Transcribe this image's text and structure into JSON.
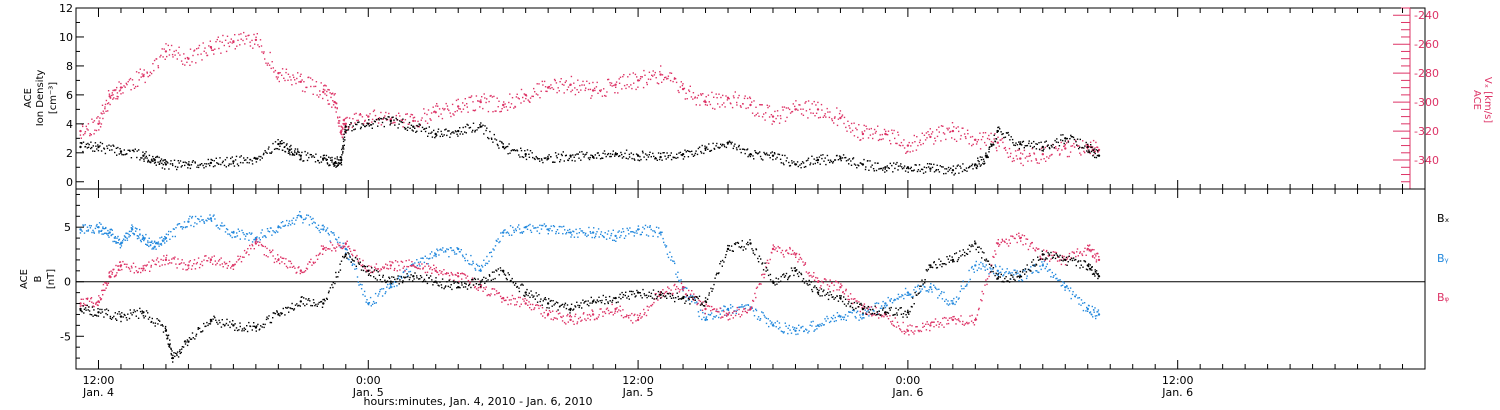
{
  "chart_data": [
    {
      "type": "scatter",
      "title": "",
      "xlabel": "hours:minutes, Jan.  4, 2010 - Jan.  6, 2010",
      "ylabel": [
        "ACE",
        "Ion Density",
        "[cm⁻³]"
      ],
      "ylabel_right": [
        "ACE",
        "Vₓ [km/s]"
      ],
      "xlim": [
        -1,
        59
      ],
      "ylim": [
        -0.5,
        12
      ],
      "ylim_right": [
        -360,
        -235
      ],
      "yticks": [
        0,
        2,
        4,
        6,
        8,
        10,
        12
      ],
      "yticks_right": [
        -340,
        -320,
        -300,
        -280,
        -260,
        -240
      ],
      "x_ticks": [
        {
          "t": 0,
          "label": "12:00",
          "sublabel": "Jan. 4"
        },
        {
          "t": 12,
          "label": "0:00",
          "sublabel": "Jan. 5"
        },
        {
          "t": 24,
          "label": "12:00",
          "sublabel": "Jan. 5"
        },
        {
          "t": 36,
          "label": "0:00",
          "sublabel": "Jan. 6"
        },
        {
          "t": 48,
          "label": "12:00",
          "sublabel": "Jan. 6"
        }
      ],
      "series": [
        {
          "name": "",
          "axis": "left",
          "color": "#000000",
          "x_hours_since_jan4_12": [
            -0.8,
            0,
            1,
            2,
            2.5,
            3,
            4,
            5,
            6,
            7,
            8,
            8.5,
            9,
            10,
            10.5,
            10.8,
            11,
            12,
            13,
            14,
            15,
            16,
            17,
            18,
            19,
            20,
            21,
            22,
            23,
            24,
            25,
            26,
            27,
            28,
            29,
            30,
            31,
            32,
            33,
            34,
            35,
            36,
            37,
            38,
            39,
            39.5,
            40,
            41,
            42,
            43,
            44,
            44.5
          ],
          "values": [
            2.4,
            2.4,
            2.1,
            1.8,
            1.5,
            1.2,
            1.2,
            1.3,
            1.4,
            1.6,
            2.6,
            2.2,
            1.8,
            1.6,
            1.3,
            1.5,
            3.8,
            4.0,
            4.2,
            3.8,
            3.3,
            3.5,
            3.8,
            2.4,
            1.9,
            1.6,
            1.8,
            1.7,
            1.9,
            1.8,
            1.7,
            1.9,
            2.3,
            2.7,
            1.9,
            1.8,
            1.2,
            1.5,
            1.6,
            1.2,
            1.0,
            1.0,
            0.9,
            0.8,
            1.2,
            1.7,
            3.5,
            2.6,
            2.4,
            3.0,
            2.4,
            1.8
          ]
        },
        {
          "name": "",
          "axis": "right",
          "color": "#dd3366",
          "x_hours_since_jan4_12": [
            -0.8,
            0,
            0.5,
            1,
            2,
            3,
            4,
            5,
            6,
            7,
            8,
            9,
            10,
            10.5,
            10.8,
            11,
            12,
            13,
            14,
            15,
            16,
            17,
            18,
            19,
            20,
            21,
            22,
            23,
            24,
            25,
            26,
            27,
            28,
            29,
            30,
            31,
            32,
            33,
            34,
            35,
            36,
            37,
            38,
            39,
            40,
            41,
            42,
            43,
            44,
            44.5
          ],
          "values": [
            -320,
            -315,
            -296,
            -290,
            -282,
            -265,
            -270,
            -262,
            -258,
            -257,
            -280,
            -286,
            -293,
            -300,
            -320,
            -315,
            -310,
            -312,
            -313,
            -307,
            -303,
            -300,
            -302,
            -295,
            -290,
            -288,
            -292,
            -288,
            -285,
            -281,
            -291,
            -300,
            -297,
            -302,
            -310,
            -305,
            -305,
            -311,
            -322,
            -322,
            -330,
            -324,
            -320,
            -326,
            -328,
            -339,
            -336,
            -332,
            -330,
            -333
          ]
        }
      ]
    },
    {
      "type": "scatter",
      "title": "",
      "xlabel": "hours:minutes, Jan.  4, 2010 - Jan.  6, 2010",
      "ylabel": [
        "ACE",
        "B",
        "[nT]"
      ],
      "xlim": [
        -1,
        59
      ],
      "ylim": [
        -8,
        8.5
      ],
      "yticks": [
        -5,
        0,
        5
      ],
      "zero_line": true,
      "legend_placement": "right",
      "series": [
        {
          "name": "Bₓ",
          "color": "#000000",
          "x_hours_since_jan4_12": [
            -0.8,
            0,
            1,
            2,
            3,
            3.3,
            4,
            5,
            6,
            7,
            8,
            9,
            10,
            11,
            12,
            13,
            14,
            15,
            16,
            17,
            18,
            19,
            20,
            21,
            22,
            23,
            24,
            25,
            26,
            27,
            28,
            29,
            30,
            31,
            32,
            33,
            34,
            35,
            36,
            37,
            38,
            39,
            40,
            41,
            42,
            43,
            44,
            44.5
          ],
          "values": [
            -2.5,
            -2.8,
            -3.2,
            -2.8,
            -4.5,
            -7.0,
            -5.5,
            -3.5,
            -4.0,
            -4.2,
            -3.0,
            -1.8,
            -2.0,
            2.5,
            1.0,
            0.0,
            0.5,
            0.0,
            -0.5,
            0.0,
            1.0,
            -1.0,
            -2.0,
            -2.5,
            -1.8,
            -1.5,
            -1.0,
            -1.2,
            -1.5,
            -1.8,
            3.0,
            3.5,
            0.0,
            1.0,
            -1.0,
            -1.5,
            -2.5,
            -2.8,
            -2.8,
            1.5,
            2.0,
            3.5,
            0.3,
            0.5,
            2.5,
            2.0,
            1.5,
            0.5
          ]
        },
        {
          "name": "Bᵧ",
          "color": "#2288dd",
          "x_hours_since_jan4_12": [
            -0.8,
            0,
            0.5,
            1,
            1.5,
            2,
            2.5,
            3,
            4,
            5,
            6,
            7,
            8,
            9,
            10,
            11,
            12,
            13,
            14,
            15,
            16,
            17,
            18,
            19,
            20,
            21,
            22,
            23,
            24,
            25,
            26,
            27,
            28,
            29,
            30,
            31,
            32,
            33,
            34,
            35,
            36,
            37,
            38,
            39,
            40,
            41,
            42,
            43,
            44,
            44.5
          ],
          "values": [
            4.8,
            5.0,
            4.5,
            3.5,
            4.8,
            4.0,
            3.2,
            4.0,
            5.5,
            5.8,
            4.5,
            4.0,
            5.0,
            6.0,
            4.8,
            3.0,
            -2.0,
            -0.5,
            1.5,
            2.5,
            3.0,
            1.0,
            4.5,
            5.0,
            4.8,
            4.5,
            4.5,
            4.2,
            4.8,
            4.5,
            -0.5,
            -3.5,
            -2.5,
            -2.5,
            -4.0,
            -4.5,
            -4.0,
            -3.2,
            -3.0,
            -2.0,
            -1.0,
            -0.5,
            -2.0,
            1.5,
            1.0,
            0.5,
            1.5,
            -0.5,
            -2.5,
            -3.0
          ]
        },
        {
          "name": "Bᵩ",
          "color": "#dd3366",
          "x_hours_since_jan4_12": [
            -0.8,
            0,
            0.5,
            1,
            2,
            3,
            4,
            5,
            6,
            7,
            8,
            9,
            10,
            11,
            12,
            13,
            14,
            15,
            16,
            17,
            18,
            19,
            20,
            21,
            22,
            23,
            24,
            25,
            26,
            27,
            28,
            29,
            30,
            31,
            32,
            33,
            34,
            35,
            36,
            37,
            38,
            39,
            40,
            41,
            42,
            43,
            44,
            44.5
          ],
          "values": [
            -2.0,
            -1.8,
            0.5,
            1.5,
            1.2,
            2.0,
            1.5,
            2.0,
            1.5,
            3.5,
            2.0,
            1.0,
            3.0,
            3.5,
            1.0,
            1.5,
            1.5,
            1.0,
            0.5,
            -0.5,
            -1.5,
            -2.0,
            -3.0,
            -3.5,
            -3.0,
            -2.5,
            -3.5,
            -1.0,
            -0.5,
            -2.5,
            -3.0,
            -2.5,
            3.0,
            2.5,
            0.0,
            -0.5,
            -2.5,
            -3.0,
            -4.5,
            -4.0,
            -3.5,
            -3.5,
            3.5,
            4.0,
            2.5,
            2.0,
            3.0,
            2.0
          ]
        }
      ]
    }
  ]
}
